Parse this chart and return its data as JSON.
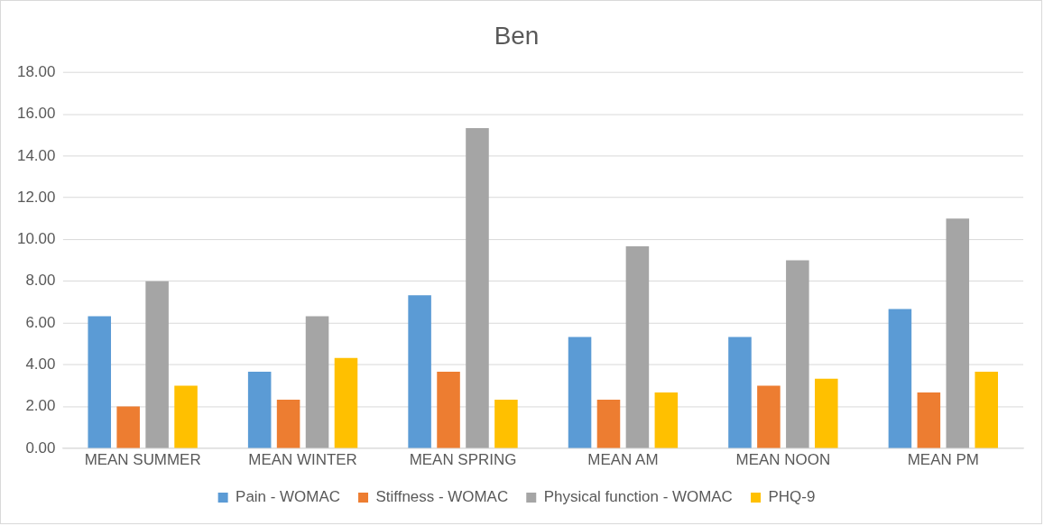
{
  "chart_data": {
    "type": "bar",
    "title": "Ben",
    "categories": [
      "MEAN SUMMER",
      "MEAN WINTER",
      "MEAN SPRING",
      "MEAN AM",
      "MEAN NOON",
      "MEAN PM"
    ],
    "series": [
      {
        "name": "Pain - WOMAC",
        "color": "#5b9bd5",
        "values": [
          6.33,
          3.67,
          7.33,
          5.33,
          5.33,
          6.67
        ]
      },
      {
        "name": "Stiffness - WOMAC",
        "color": "#ed7d31",
        "values": [
          2.0,
          2.33,
          3.67,
          2.33,
          3.0,
          2.67
        ]
      },
      {
        "name": "Physical function - WOMAC",
        "color": "#a5a5a5",
        "values": [
          8.0,
          6.33,
          15.33,
          9.67,
          9.0,
          11.0
        ]
      },
      {
        "name": "PHQ-9",
        "color": "#ffc000",
        "values": [
          3.0,
          4.33,
          2.33,
          2.67,
          3.33,
          3.67
        ]
      }
    ],
    "ylim": [
      0,
      18
    ],
    "yticks": [
      {
        "value": 0,
        "label": "0.00"
      },
      {
        "value": 2,
        "label": "2.00"
      },
      {
        "value": 4,
        "label": "4.00"
      },
      {
        "value": 6,
        "label": "6.00"
      },
      {
        "value": 8,
        "label": "8.00"
      },
      {
        "value": 10,
        "label": "10.00"
      },
      {
        "value": 12,
        "label": "12.00"
      },
      {
        "value": 14,
        "label": "14.00"
      },
      {
        "value": 16,
        "label": "16.00"
      },
      {
        "value": 18,
        "label": "18.00"
      }
    ],
    "grid": "y",
    "legend": "bottom"
  }
}
